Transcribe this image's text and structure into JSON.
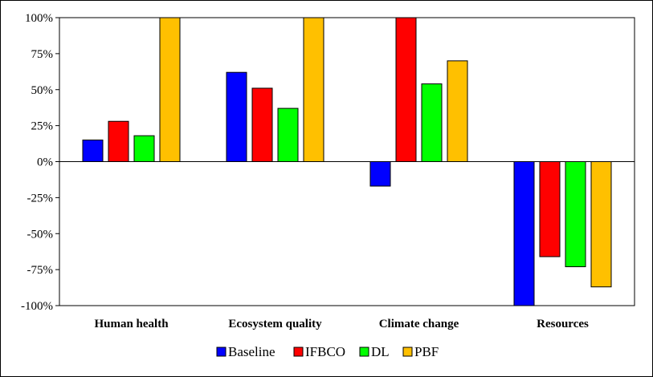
{
  "chart_data": {
    "type": "bar",
    "title": "",
    "xlabel": "",
    "ylabel": "",
    "categories": [
      "Human health",
      "Ecosystem quality",
      "Climate change",
      "Resources"
    ],
    "series": [
      {
        "name": "Baseline",
        "color": "#0000ff",
        "values": [
          15,
          62,
          -17,
          -100
        ]
      },
      {
        "name": "IFBCO",
        "color": "#ff0000",
        "values": [
          28,
          51,
          100,
          -66
        ]
      },
      {
        "name": "DL",
        "color": "#00ff00",
        "values": [
          18,
          37,
          54,
          -73
        ]
      },
      {
        "name": "PBF",
        "color": "#ffc000",
        "values": [
          100,
          100,
          70,
          -87
        ]
      }
    ],
    "ylim": [
      -100,
      100
    ],
    "yticks": [
      -100,
      -75,
      -50,
      -25,
      0,
      25,
      50,
      75,
      100
    ],
    "ytick_labels": [
      "-100%",
      "-75%",
      "-50%",
      "-25%",
      "0%",
      "25%",
      "50%",
      "75%",
      "100%"
    ],
    "grid": false,
    "legend": "bottom"
  }
}
